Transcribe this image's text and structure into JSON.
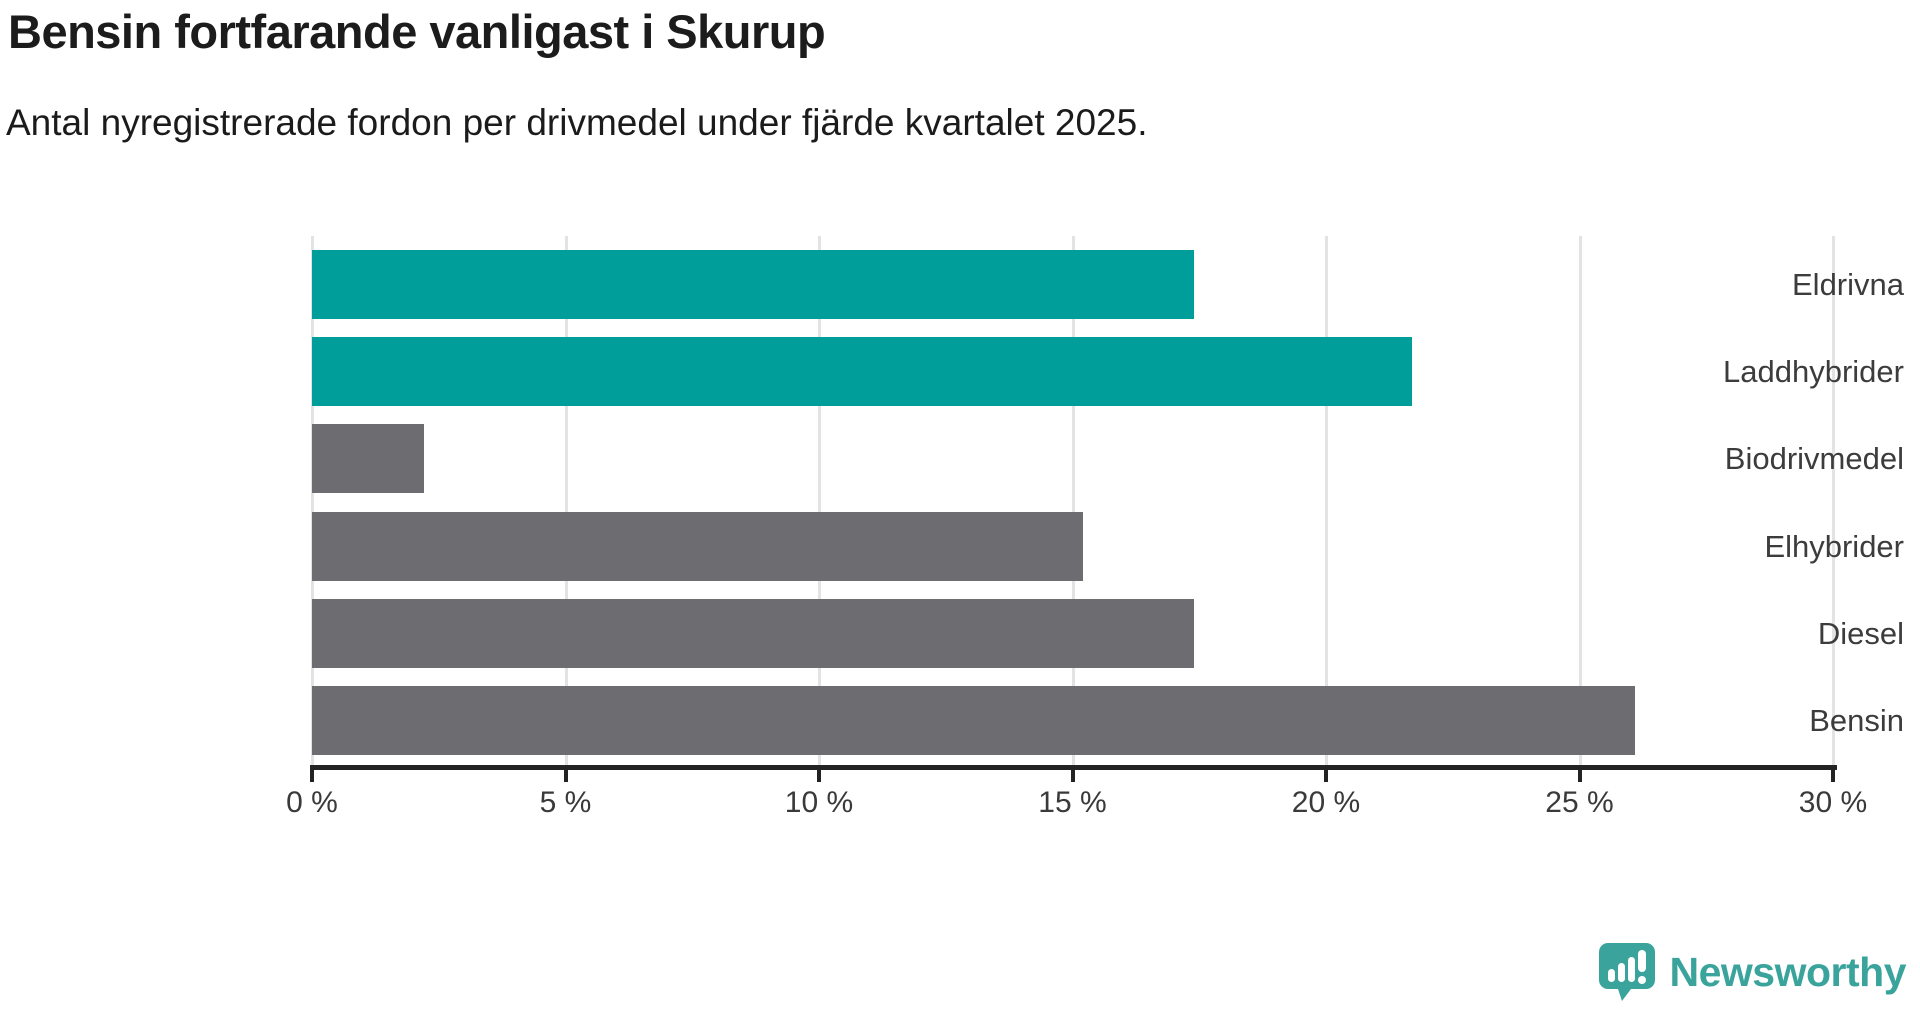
{
  "header": {
    "title": "Bensin fortfarande vanligast i Skurup",
    "subtitle": "Antal nyregistrerade fordon per drivmedel under fjärde kvartalet 2025."
  },
  "chart_data": {
    "type": "bar",
    "orientation": "horizontal",
    "title": "Bensin fortfarande vanligast i Skurup",
    "subtitle": "Antal nyregistrerade fordon per drivmedel under fjärde kvartalet 2025.",
    "categories": [
      "Eldrivna",
      "Laddhybrider",
      "Biodrivmedel",
      "Elhybrider",
      "Diesel",
      "Bensin"
    ],
    "values": [
      17.4,
      21.7,
      2.2,
      15.2,
      17.4,
      26.1
    ],
    "unit": "%",
    "bar_colors": [
      "#009e9a",
      "#009e9a",
      "#6d6d71",
      "#6d6d71",
      "#6d6d71",
      "#6d6d71"
    ],
    "x_tick_values": [
      0,
      5,
      10,
      15,
      20,
      25,
      30
    ],
    "x_tick_labels": [
      "0 %",
      "5 %",
      "10 %",
      "15 %",
      "20 %",
      "25 %",
      "30 %"
    ],
    "xlim": [
      0,
      30
    ],
    "xlabel": "",
    "ylabel": "",
    "grid": "vertical-only",
    "legend": "none"
  },
  "branding": {
    "logo_text": "Newsworthy",
    "logo_icon": "newsworthy-speech-bubble-bar-chart-icon"
  },
  "colors": {
    "highlight_teal": "#009e9a",
    "neutral_gray": "#6d6d71",
    "gridline": "#e3e3e3",
    "axis": "#232323",
    "title_text": "#1c1c1c",
    "label_text": "#3c3c3c",
    "brand_teal": "#3aa49c",
    "background": "#ffffff"
  }
}
